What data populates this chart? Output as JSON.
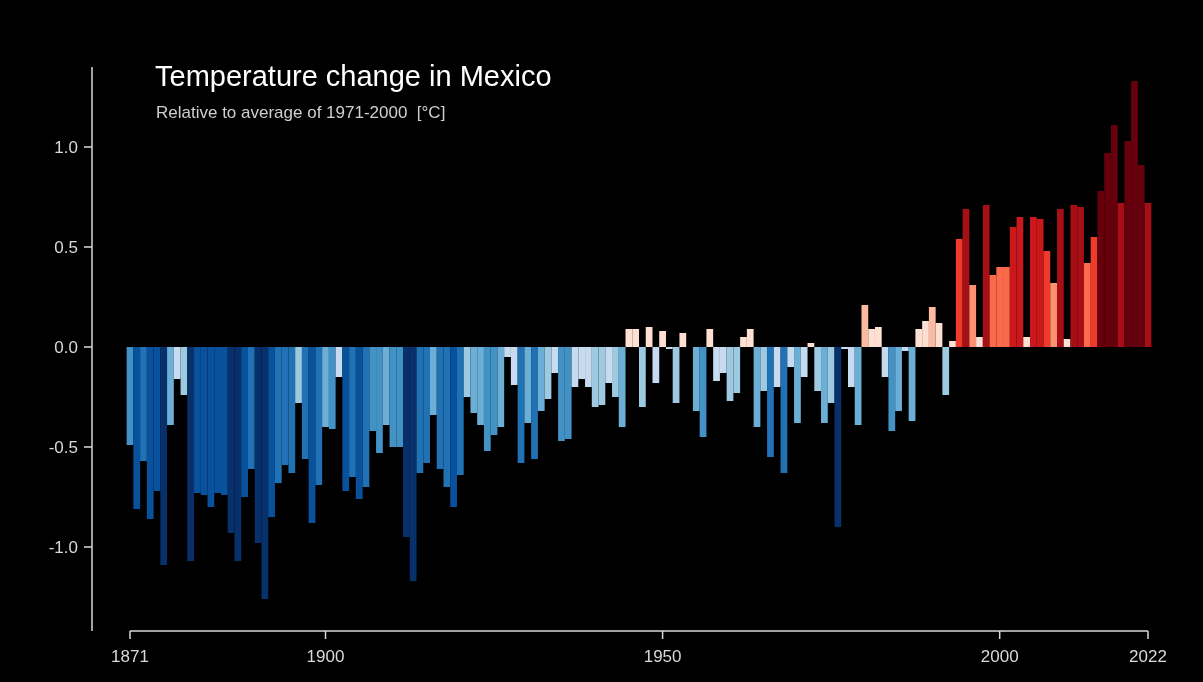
{
  "chart_data": {
    "type": "bar",
    "title": "Temperature change in Mexico",
    "subtitle": "Relative to average of 1971-2000  [°C]",
    "x": [
      1871,
      1872,
      1873,
      1874,
      1875,
      1876,
      1877,
      1878,
      1879,
      1880,
      1881,
      1882,
      1883,
      1884,
      1885,
      1886,
      1887,
      1888,
      1889,
      1890,
      1891,
      1892,
      1893,
      1894,
      1895,
      1896,
      1897,
      1898,
      1899,
      1900,
      1901,
      1902,
      1903,
      1904,
      1905,
      1906,
      1907,
      1908,
      1909,
      1910,
      1911,
      1912,
      1913,
      1914,
      1915,
      1916,
      1917,
      1918,
      1919,
      1920,
      1921,
      1922,
      1923,
      1924,
      1925,
      1926,
      1927,
      1928,
      1929,
      1930,
      1931,
      1932,
      1933,
      1934,
      1935,
      1936,
      1937,
      1938,
      1939,
      1940,
      1941,
      1942,
      1943,
      1944,
      1945,
      1946,
      1947,
      1948,
      1949,
      1950,
      1951,
      1952,
      1953,
      1954,
      1955,
      1956,
      1957,
      1958,
      1959,
      1960,
      1961,
      1962,
      1963,
      1964,
      1965,
      1966,
      1967,
      1968,
      1969,
      1970,
      1971,
      1972,
      1973,
      1974,
      1975,
      1976,
      1977,
      1978,
      1979,
      1980,
      1981,
      1982,
      1983,
      1984,
      1985,
      1986,
      1987,
      1988,
      1989,
      1990,
      1991,
      1992,
      1993,
      1994,
      1995,
      1996,
      1997,
      1998,
      1999,
      2000,
      2001,
      2002,
      2003,
      2004,
      2005,
      2006,
      2007,
      2008,
      2009,
      2010,
      2011,
      2012,
      2013,
      2014,
      2015,
      2016,
      2017,
      2018,
      2019,
      2020,
      2021,
      2022
    ],
    "values": [
      -0.49,
      -0.81,
      -0.57,
      -0.86,
      -0.72,
      -1.09,
      -0.39,
      -0.16,
      -0.24,
      -1.07,
      -0.73,
      -0.74,
      -0.8,
      -0.73,
      -0.74,
      -0.93,
      -1.07,
      -0.75,
      -0.61,
      -0.98,
      -1.26,
      -0.85,
      -0.68,
      -0.59,
      -0.63,
      -0.28,
      -0.56,
      -0.88,
      -0.69,
      -0.4,
      -0.41,
      -0.15,
      -0.72,
      -0.65,
      -0.76,
      -0.7,
      -0.42,
      -0.53,
      -0.39,
      -0.5,
      -0.5,
      -0.95,
      -1.17,
      -0.63,
      -0.58,
      -0.34,
      -0.61,
      -0.7,
      -0.8,
      -0.64,
      -0.25,
      -0.33,
      -0.39,
      -0.52,
      -0.44,
      -0.4,
      -0.05,
      -0.19,
      -0.58,
      -0.38,
      -0.56,
      -0.32,
      -0.26,
      -0.13,
      -0.47,
      -0.46,
      -0.2,
      -0.16,
      -0.2,
      -0.3,
      -0.29,
      -0.18,
      -0.25,
      -0.4,
      0.09,
      0.09,
      -0.3,
      0.1,
      -0.18,
      0.08,
      -0.01,
      -0.28,
      0.07,
      0,
      -0.32,
      -0.45,
      0.09,
      -0.17,
      -0.13,
      -0.27,
      -0.23,
      0.05,
      0.09,
      -0.4,
      -0.22,
      -0.55,
      -0.2,
      -0.63,
      -0.1,
      -0.38,
      -0.15,
      0.02,
      -0.22,
      -0.38,
      -0.28,
      -0.9,
      -0.01,
      -0.2,
      -0.39,
      0.21,
      0.09,
      0.1,
      -0.15,
      -0.42,
      -0.32,
      -0.02,
      -0.37,
      0.09,
      0.13,
      0.2,
      0.12,
      -0.24,
      0.03,
      0.54,
      0.69,
      0.31,
      0.05,
      0.71,
      0.36,
      0.4,
      0.4,
      0.6,
      0.65,
      0.05,
      0.65,
      0.64,
      0.48,
      0.32,
      0.69,
      0.04,
      0.71,
      0.7,
      0.42,
      0.55,
      0.78,
      0.97,
      1.11,
      0.72,
      1.03,
      1.33,
      0.91,
      0.72
    ],
    "colors": [
      "#4292c6",
      "#08519c",
      "#2171b5",
      "#08519c",
      "#08519c",
      "#08306b",
      "#6baed6",
      "#c6dbef",
      "#9ecae1",
      "#08306b",
      "#08519c",
      "#08519c",
      "#08519c",
      "#08519c",
      "#08519c",
      "#08306b",
      "#08306b",
      "#08519c",
      "#2171b5",
      "#08306b",
      "#08306b",
      "#08519c",
      "#2171b5",
      "#2171b5",
      "#2171b5",
      "#9ecae1",
      "#2171b5",
      "#08519c",
      "#2171b5",
      "#6baed6",
      "#4292c6",
      "#c6dbef",
      "#08519c",
      "#2171b5",
      "#08519c",
      "#2171b5",
      "#4292c6",
      "#4292c6",
      "#6baed6",
      "#4292c6",
      "#4292c6",
      "#08306b",
      "#08306b",
      "#2171b5",
      "#2171b5",
      "#6baed6",
      "#2171b5",
      "#2171b5",
      "#08519c",
      "#2171b5",
      "#9ecae1",
      "#6baed6",
      "#6baed6",
      "#4292c6",
      "#4292c6",
      "#6baed6",
      "#c6dbef",
      "#c6dbef",
      "#2171b5",
      "#6baed6",
      "#2171b5",
      "#6baed6",
      "#9ecae1",
      "#c6dbef",
      "#4292c6",
      "#4292c6",
      "#c6dbef",
      "#c6dbef",
      "#c6dbef",
      "#9ecae1",
      "#9ecae1",
      "#c6dbef",
      "#9ecae1",
      "#6baed6",
      "#fee0d2",
      "#fee0d2",
      "#9ecae1",
      "#fee0d2",
      "#c6dbef",
      "#fee0d2",
      "#c6dbef",
      "#9ecae1",
      "#fee0d2",
      "#fee0d2",
      "#6baed6",
      "#4292c6",
      "#fee0d2",
      "#c6dbef",
      "#c6dbef",
      "#9ecae1",
      "#9ecae1",
      "#fee0d2",
      "#fee0d2",
      "#6baed6",
      "#9ecae1",
      "#2171b5",
      "#c6dbef",
      "#2171b5",
      "#c6dbef",
      "#6baed6",
      "#c6dbef",
      "#fee0d2",
      "#9ecae1",
      "#6baed6",
      "#9ecae1",
      "#08306b",
      "#c6dbef",
      "#c6dbef",
      "#6baed6",
      "#fcbba1",
      "#fee0d2",
      "#fee0d2",
      "#c6dbef",
      "#4292c6",
      "#6baed6",
      "#c6dbef",
      "#6baed6",
      "#fee0d2",
      "#fee0d2",
      "#fcbba1",
      "#fee0d2",
      "#9ecae1",
      "#fee0d2",
      "#ef3b2c",
      "#a50f15",
      "#fc9272",
      "#fee0d2",
      "#a50f15",
      "#fb6a4a",
      "#fb6a4a",
      "#fb6a4a",
      "#cb181d",
      "#cb181d",
      "#fee0d2",
      "#cb181d",
      "#cb181d",
      "#ef3b2c",
      "#fc9272",
      "#a50f15",
      "#fee0d2",
      "#a50f15",
      "#a50f15",
      "#fb6a4a",
      "#ef3b2c",
      "#67000d",
      "#67000d",
      "#67000d",
      "#a50f15",
      "#67000d",
      "#67000d",
      "#67000d",
      "#a50f15"
    ],
    "xlim": [
      1871,
      2022
    ],
    "xticks": [
      1871,
      1900,
      1950,
      2000,
      2022
    ],
    "ylim": [
      -1.42,
      1.4
    ],
    "yticks": [
      {
        "value": -1,
        "label": "-1.0"
      },
      {
        "value": -0.5,
        "label": "-0.5"
      },
      {
        "value": 0,
        "label": "0.0"
      },
      {
        "value": 0.5,
        "label": "0.5"
      },
      {
        "value": 1,
        "label": "1.0"
      }
    ],
    "grid": false
  }
}
